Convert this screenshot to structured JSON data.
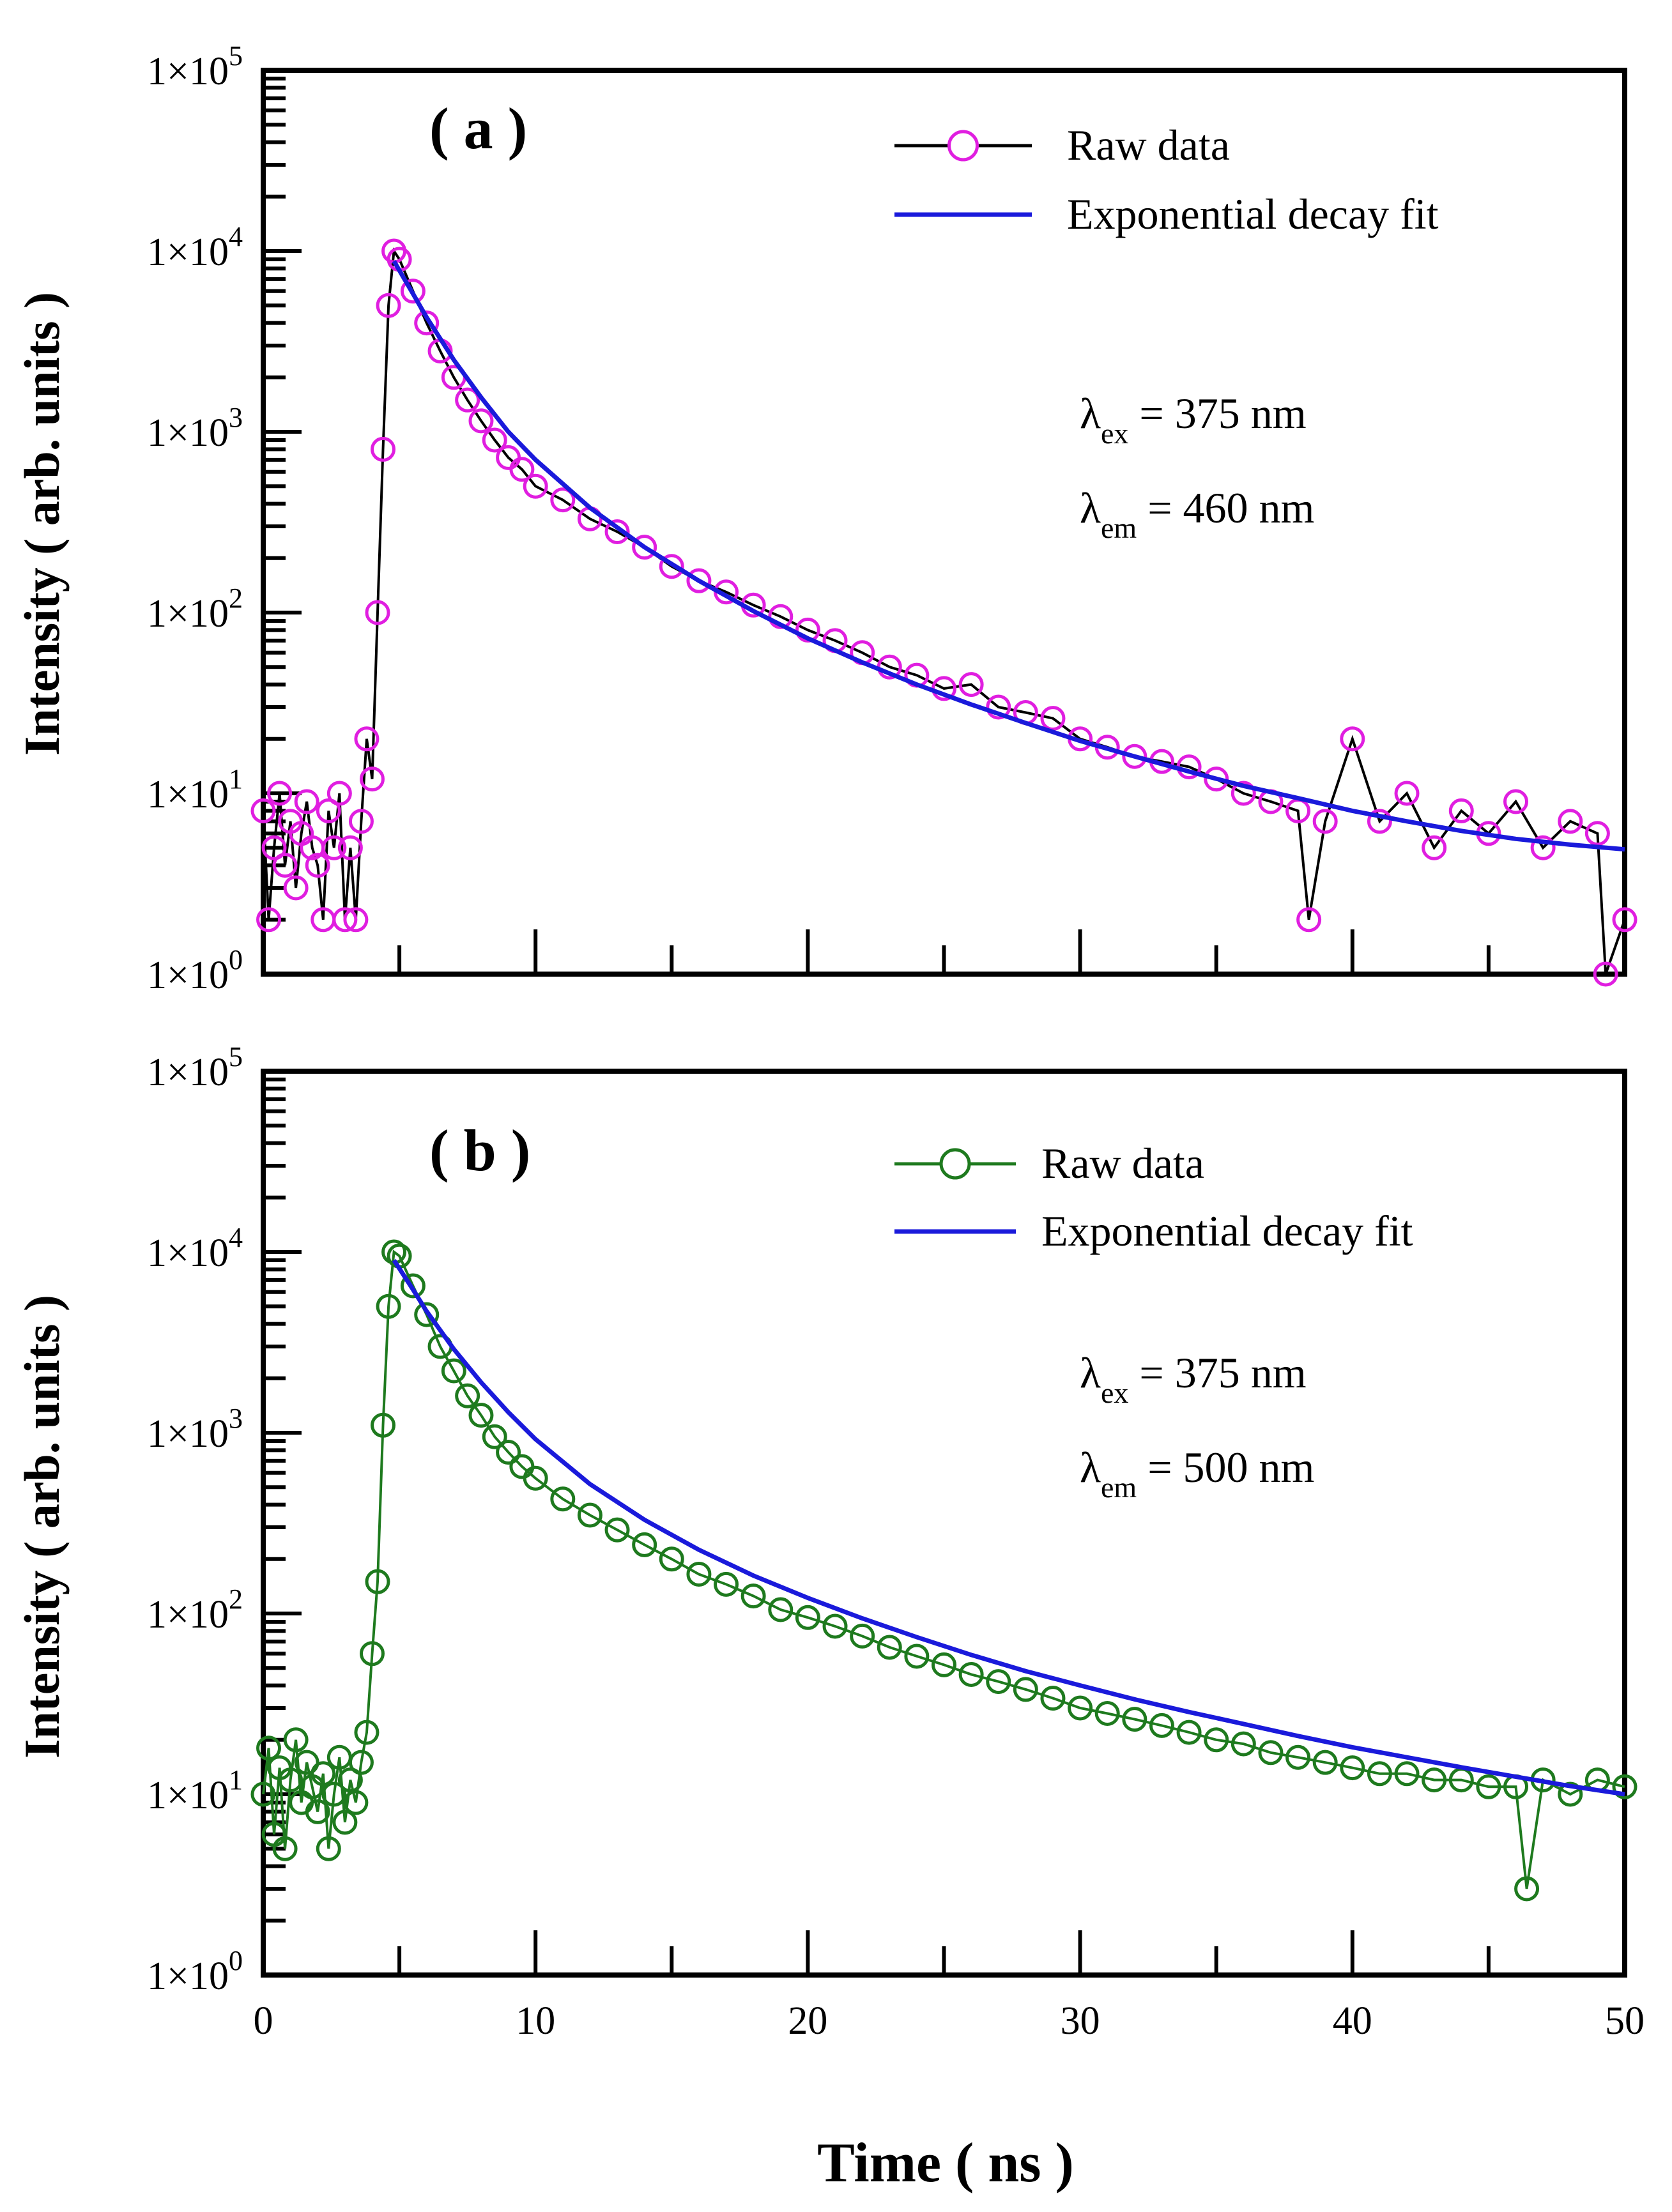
{
  "figure": {
    "xlabel": "Time ( ns )"
  },
  "chart_data": [
    {
      "id": "a",
      "type": "scatter",
      "panel_label": "( a )",
      "ylabel": "Intensity ( arb. units )",
      "xlim": [
        0,
        50
      ],
      "ylim": [
        1,
        100000
      ],
      "y_scale": "log",
      "x_ticks": [
        0,
        10,
        20,
        30,
        40,
        50
      ],
      "y_ticks": [
        "1×10^0",
        "1×10^1",
        "1×10^2",
        "1×10^3",
        "1×10^4",
        "1×10^5"
      ],
      "show_x_tick_labels": false,
      "legend_position": "top-right",
      "annotations": [
        {
          "symbol": "λ",
          "sub": "ex",
          "text": " = 375 nm"
        },
        {
          "symbol": "λ",
          "sub": "em",
          "text": " = 460 nm"
        }
      ],
      "series": [
        {
          "name": "Raw data",
          "kind": "raw",
          "marker": "open-circle",
          "marker_color": "#e01ee0",
          "line_color": "#000000",
          "x": [
            0.0,
            0.2,
            0.4,
            0.6,
            0.8,
            1.0,
            1.2,
            1.4,
            1.6,
            1.8,
            2.0,
            2.2,
            2.4,
            2.6,
            2.8,
            3.0,
            3.2,
            3.4,
            3.6,
            3.8,
            4.0,
            4.2,
            4.4,
            4.6,
            4.8,
            5.0,
            5.5,
            6.0,
            6.5,
            7.0,
            7.5,
            8.0,
            8.5,
            9.0,
            9.5,
            10.0,
            11.0,
            12.0,
            13.0,
            14.0,
            15.0,
            16.0,
            17.0,
            18.0,
            19.0,
            20.0,
            21.0,
            22.0,
            23.0,
            24.0,
            25.0,
            26.0,
            27.0,
            28.0,
            29.0,
            30.0,
            31.0,
            32.0,
            33.0,
            34.0,
            35.0,
            36.0,
            37.0,
            38.0,
            38.4,
            39.0,
            40.0,
            41.0,
            42.0,
            43.0,
            44.0,
            45.0,
            46.0,
            47.0,
            48.0,
            49.0,
            49.3,
            50.0
          ],
          "y": [
            8,
            2,
            5,
            10,
            4,
            7,
            3,
            6,
            9,
            5,
            4,
            2,
            8,
            5,
            10,
            2,
            5,
            2,
            7,
            20,
            12,
            100,
            800,
            5000,
            10000,
            9000,
            6000,
            4000,
            2800,
            2000,
            1500,
            1150,
            900,
            720,
            620,
            500,
            420,
            330,
            280,
            230,
            180,
            150,
            130,
            110,
            95,
            80,
            70,
            60,
            50,
            45,
            38,
            40,
            30,
            28,
            26,
            20,
            18,
            16,
            15,
            14,
            12,
            10,
            9,
            8,
            2,
            7,
            20,
            7,
            10,
            5,
            8,
            6,
            9,
            5,
            7,
            6,
            1,
            2
          ]
        },
        {
          "name": "Exponential decay fit",
          "kind": "fit",
          "line_color": "#1a1adb",
          "x": [
            4.8,
            5.5,
            6,
            7,
            8,
            9,
            10,
            12,
            14,
            16,
            18,
            20,
            22,
            24,
            26,
            28,
            30,
            32,
            34,
            36,
            38,
            40,
            42,
            44,
            46,
            48,
            50
          ],
          "y": [
            8800,
            5800,
            4300,
            2500,
            1550,
            1000,
            700,
            380,
            230,
            150,
            102,
            72,
            53,
            40,
            31,
            24.5,
            19.5,
            16,
            13.2,
            11.0,
            9.4,
            8.0,
            7.0,
            6.2,
            5.6,
            5.2,
            4.9
          ]
        }
      ]
    },
    {
      "id": "b",
      "type": "scatter",
      "panel_label": "( b )",
      "ylabel": "Intensity ( arb. units )",
      "xlim": [
        0,
        50
      ],
      "ylim": [
        1,
        100000
      ],
      "y_scale": "log",
      "x_ticks": [
        0,
        10,
        20,
        30,
        40,
        50
      ],
      "y_ticks": [
        "1×10^0",
        "1×10^1",
        "1×10^2",
        "1×10^3",
        "1×10^4",
        "1×10^5"
      ],
      "show_x_tick_labels": true,
      "legend_position": "top-right",
      "annotations": [
        {
          "symbol": "λ",
          "sub": "ex",
          "text": " = 375 nm"
        },
        {
          "symbol": "λ",
          "sub": "em",
          "text": " = 500 nm"
        }
      ],
      "series": [
        {
          "name": "Raw data",
          "kind": "raw",
          "marker": "open-circle",
          "marker_color": "#1e7a1e",
          "line_color": "#1e7a1e",
          "x": [
            0.0,
            0.2,
            0.4,
            0.6,
            0.8,
            1.0,
            1.2,
            1.4,
            1.6,
            1.8,
            2.0,
            2.2,
            2.4,
            2.6,
            2.8,
            3.0,
            3.2,
            3.4,
            3.6,
            3.8,
            4.0,
            4.2,
            4.4,
            4.6,
            4.8,
            5.0,
            5.5,
            6.0,
            6.5,
            7.0,
            7.5,
            8.0,
            8.5,
            9.0,
            9.5,
            10.0,
            11.0,
            12.0,
            13.0,
            14.0,
            15.0,
            16.0,
            17.0,
            18.0,
            19.0,
            20.0,
            21.0,
            22.0,
            23.0,
            24.0,
            25.0,
            26.0,
            27.0,
            28.0,
            29.0,
            30.0,
            31.0,
            32.0,
            33.0,
            34.0,
            35.0,
            36.0,
            37.0,
            38.0,
            39.0,
            40.0,
            41.0,
            42.0,
            43.0,
            44.0,
            45.0,
            46.0,
            46.4,
            47.0,
            48.0,
            49.0,
            50.0
          ],
          "y": [
            10,
            18,
            6,
            14,
            5,
            12,
            20,
            9,
            15,
            11,
            8,
            13,
            5,
            10,
            16,
            7,
            12,
            9,
            15,
            22,
            60,
            150,
            1100,
            5000,
            10000,
            9500,
            6500,
            4500,
            3000,
            2200,
            1600,
            1250,
            950,
            780,
            650,
            560,
            430,
            350,
            290,
            240,
            200,
            165,
            145,
            125,
            105,
            95,
            85,
            75,
            65,
            58,
            52,
            46,
            42,
            38,
            34,
            30,
            28,
            26,
            24,
            22,
            20,
            19,
            17,
            16,
            15,
            14,
            13,
            13,
            12,
            12,
            11,
            11,
            3,
            12,
            10,
            12,
            11
          ]
        },
        {
          "name": "Exponential decay fit",
          "kind": "fit",
          "line_color": "#1a1adb",
          "x": [
            4.8,
            5.5,
            6,
            7,
            8,
            9,
            10,
            12,
            14,
            16,
            18,
            20,
            22,
            24,
            26,
            28,
            30,
            32,
            34,
            36,
            38,
            40,
            42,
            44,
            46,
            48,
            50
          ],
          "y": [
            9000,
            6200,
            4700,
            2900,
            1900,
            1300,
            920,
            520,
            330,
            225,
            162,
            122,
            94,
            74,
            59,
            48,
            40,
            33.5,
            28.5,
            24.5,
            21.0,
            18.2,
            16.0,
            14.1,
            12.5,
            11.1,
            10.0
          ]
        }
      ]
    }
  ]
}
